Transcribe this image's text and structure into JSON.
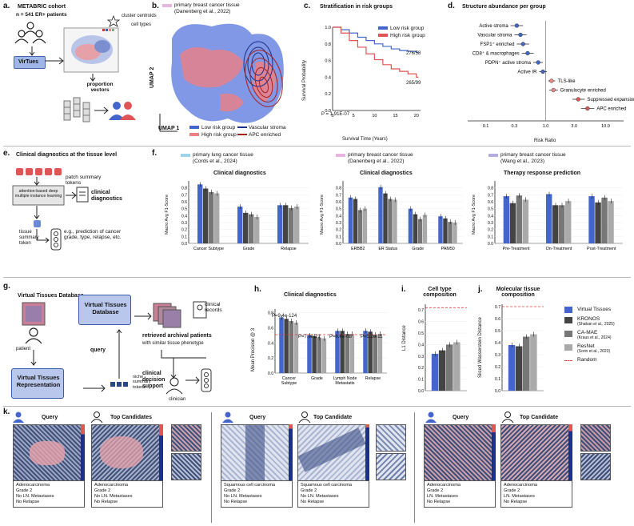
{
  "panel_a": {
    "label": "a.",
    "title": "METABRIC cohort",
    "subtitle": "n = 541 ER+ patients",
    "legend_centroids": "cluster centroids",
    "legend_celltypes": "cell types",
    "model": "VirTues",
    "output": "proportion vectors"
  },
  "panel_b": {
    "label": "b.",
    "tissue_tag": "primary breast cancer tissue",
    "citation": "(Danenberg et al., 2022)",
    "xlabel": "UMAP 1",
    "ylabel": "UMAP 2",
    "legend": [
      "Low risk group",
      "High risk group",
      "Vascular stroma",
      "APC enriched"
    ]
  },
  "panel_c": {
    "label": "c.",
    "title": "Stratification in risk groups",
    "legend": [
      "Low risk group",
      "High risk group"
    ],
    "pvalue": "P = 1.91E-07",
    "end_low": "276/58",
    "end_high": "265/99",
    "xlabel": "Survival Time (Years)",
    "ylabel": "Survival Probability"
  },
  "panel_d": {
    "label": "d.",
    "title": "Structure abundance per group",
    "xlabel": "Risk Ratio"
  },
  "panel_e": {
    "label": "e.",
    "title": "Clinical diagnostics at the tissue level",
    "tokens": "patch summary tokens",
    "mil": "attention-based deep multiple instance learning",
    "clin": "clinical diagnostics",
    "eg": "e.g., prediction of cancer grade, type, relapse, etc.",
    "tissue_token": "tissue summary token"
  },
  "panel_f": {
    "label": "f.",
    "groups": [
      {
        "tag": "primary lung cancer tissue",
        "cite": "(Cords et al., 2024)",
        "title": "Clinical diagnostics"
      },
      {
        "tag": "primary breast cancer tissue",
        "cite": "(Danenberg et al., 2022)",
        "title": "Clinical diagnostics"
      },
      {
        "tag": "primary breast cancer tissue",
        "cite": "(Wang et al., 2023)",
        "title": "Therapy response prediction"
      }
    ],
    "ylabel": "Macro Avg F1-Score"
  },
  "panel_g": {
    "label": "g.",
    "title": "Virtual Tissues Database",
    "patient": "patient",
    "db": "Virtual Tissues Database",
    "rep": "Virtual Tissues Representation",
    "query": "query",
    "niche": "niche summary tokens",
    "records": "clinical records",
    "retrieved": "retrieved archival patients",
    "similar": "with similar tissue phenotype",
    "decision": "clinical decision support",
    "clinician": "clinician"
  },
  "panel_h": {
    "label": "h.",
    "title": "Clinical diagnostics",
    "ylabel": "Mean Precision @ 3",
    "pvals": [
      "P=9.4e-124",
      "P=7.0e-22",
      "P=8.6e-08",
      "P=5.2e-11"
    ]
  },
  "panel_i": {
    "label": "i.",
    "title": "Cell type composition",
    "ylabel": "L1 Distance"
  },
  "panel_j": {
    "label": "j.",
    "title": "Molecular tissue composition",
    "ylabel": "Sliced Wasserstein Distance"
  },
  "legend_main": [
    {
      "name": "Virtual Tissues",
      "sub": "",
      "color": "#4466cc"
    },
    {
      "name": "KRONOS",
      "sub": "(Shaban et al., 2025)",
      "color": "#444444"
    },
    {
      "name": "CA-MAE",
      "sub": "(Kraus et al., 2024)",
      "color": "#777777"
    },
    {
      "name": "ResNet",
      "sub": "(Sorin et al., 2023)",
      "color": "#aaaaaa"
    },
    {
      "name": "Random",
      "sub": "",
      "color": "#e04040"
    }
  ],
  "panel_k": {
    "label": "k.",
    "cases": [
      {
        "query": "Query",
        "cand": "Top Candidates",
        "q_text": [
          "Adenocarcinoma",
          "Grade 2",
          "No LN. Metastases",
          "No Relapse"
        ],
        "c_text": [
          "Adenocarcinoma",
          "Grade 2",
          "No LN. Metastases",
          "No Relapse"
        ]
      },
      {
        "query": "Query",
        "cand": "Top Candidate",
        "q_text": [
          "Squamous cell carcinoma",
          "Grade 2",
          "No LN. Metastases",
          "No Relapse"
        ],
        "c_text": [
          "Squamous cell carcinoma",
          "Grade 2",
          "No LN. Metastases",
          "No Relapse"
        ]
      },
      {
        "query": "Query",
        "cand": "Top Candidate",
        "q_text": [
          "Adenocarcinoma",
          "Grade 2",
          "LN. Metastases",
          "No Relapse"
        ],
        "c_text": [
          "Adenocarcinoma",
          "Grade 2",
          "LN. Metastases",
          "No Relapse"
        ]
      }
    ]
  },
  "chart_data": [
    {
      "id": "survival",
      "type": "line",
      "title": "Stratification in risk groups",
      "xlabel": "Survival Time (Years)",
      "ylabel": "Survival Probability",
      "xlim": [
        0,
        21
      ],
      "ylim": [
        0.0,
        1.0
      ],
      "xticks": [
        0,
        5,
        10,
        15,
        20
      ],
      "yticks": [
        0.0,
        0.2,
        0.4,
        0.6,
        0.8,
        1.0
      ],
      "series": [
        {
          "name": "Low risk group",
          "color": "#4466cc",
          "x": [
            0,
            2,
            4,
            6,
            8,
            10,
            12,
            14,
            16,
            18,
            20,
            20.5
          ],
          "y": [
            1.0,
            0.97,
            0.93,
            0.88,
            0.84,
            0.8,
            0.77,
            0.74,
            0.72,
            0.71,
            0.7,
            0.7
          ]
        },
        {
          "name": "High risk group",
          "color": "#e05555",
          "x": [
            0,
            2,
            4,
            6,
            8,
            10,
            12,
            14,
            16,
            18,
            20,
            20.5
          ],
          "y": [
            1.0,
            0.93,
            0.84,
            0.76,
            0.68,
            0.61,
            0.55,
            0.5,
            0.47,
            0.44,
            0.4,
            0.4
          ]
        }
      ]
    },
    {
      "id": "forest",
      "type": "scatter",
      "title": "Structure abundance per group",
      "xlabel": "Risk Ratio",
      "xscale": "log",
      "xlim": [
        0.05,
        20
      ],
      "xticks": [
        0.1,
        0.3,
        1.0,
        3.0,
        10.0
      ],
      "categories": [
        "Active stroma",
        "Vascular stroma",
        "FSP1⁺ enriched",
        "CD8⁺ & macrophages",
        "PDPN⁺ active stroma",
        "Active IR",
        "TLS-like",
        "Granulocyte enriched",
        "Suppressed expansion",
        "APC enriched"
      ],
      "values": [
        0.33,
        0.38,
        0.42,
        0.5,
        0.75,
        0.9,
        1.25,
        1.35,
        3.5,
        5.0
      ],
      "ci_low": [
        0.26,
        0.3,
        0.33,
        0.4,
        0.62,
        0.78,
        1.1,
        1.15,
        2.8,
        3.9
      ],
      "ci_high": [
        0.42,
        0.48,
        0.53,
        0.63,
        0.9,
        1.05,
        1.45,
        1.6,
        4.5,
        6.5
      ]
    },
    {
      "id": "f1",
      "type": "bar",
      "ylabel": "Macro Avg F1-Score",
      "ylim": [
        0.0,
        0.9
      ],
      "yticks": [
        0.0,
        0.1,
        0.2,
        0.3,
        0.4,
        0.5,
        0.6,
        0.7,
        0.8
      ],
      "categories": [
        "Cancer Subtype",
        "Grade",
        "Relapse"
      ],
      "series": [
        {
          "name": "Virtual Tissues",
          "values": [
            0.85,
            0.53,
            0.55
          ]
        },
        {
          "name": "KRONOS",
          "values": [
            0.79,
            0.44,
            0.55
          ]
        },
        {
          "name": "CA-MAE",
          "values": [
            0.74,
            0.42,
            0.51
          ]
        },
        {
          "name": "ResNet",
          "values": [
            0.72,
            0.38,
            0.53
          ]
        }
      ]
    },
    {
      "id": "f2",
      "type": "bar",
      "ylabel": "Macro Avg F1-Score",
      "ylim": [
        0.0,
        0.9
      ],
      "yticks": [
        0.0,
        0.1,
        0.2,
        0.3,
        0.4,
        0.5,
        0.6,
        0.7,
        0.8
      ],
      "categories": [
        "ERBB2",
        "ER Status",
        "Grade",
        "PAM50"
      ],
      "series": [
        {
          "name": "Virtual Tissues",
          "values": [
            0.66,
            0.81,
            0.5,
            0.39
          ]
        },
        {
          "name": "KRONOS",
          "values": [
            0.64,
            0.72,
            0.42,
            0.36
          ]
        },
        {
          "name": "CA-MAE",
          "values": [
            0.48,
            0.64,
            0.35,
            0.31
          ]
        },
        {
          "name": "ResNet",
          "values": [
            0.5,
            0.63,
            0.41,
            0.3
          ]
        }
      ]
    },
    {
      "id": "f3",
      "type": "bar",
      "ylabel": "Macro Avg F1-Score",
      "ylim": [
        0.0,
        0.9
      ],
      "yticks": [
        0.0,
        0.1,
        0.2,
        0.3,
        0.4,
        0.5,
        0.6,
        0.7,
        0.8
      ],
      "categories": [
        "Pre-Treatment",
        "On-Treatment",
        "Post-Treatment"
      ],
      "series": [
        {
          "name": "Virtual Tissues",
          "values": [
            0.68,
            0.71,
            0.68
          ]
        },
        {
          "name": "KRONOS",
          "values": [
            0.58,
            0.55,
            0.59
          ]
        },
        {
          "name": "CA-MAE",
          "values": [
            0.69,
            0.55,
            0.66
          ]
        },
        {
          "name": "ResNet",
          "values": [
            0.63,
            0.61,
            0.61
          ]
        }
      ]
    },
    {
      "id": "h",
      "type": "bar",
      "title": "Clinical diagnostics",
      "ylabel": "Mean Precision @ 3",
      "ylim": [
        0.0,
        0.85
      ],
      "yticks": [
        0.0,
        0.2,
        0.4,
        0.6,
        0.8
      ],
      "random": 0.51,
      "categories": [
        "Cancer Subtype",
        "Grade",
        "Lymph Node Metastatis",
        "Relapse"
      ],
      "series": [
        {
          "name": "Virtual Tissues",
          "values": [
            0.74,
            0.5,
            0.56,
            0.56
          ]
        },
        {
          "name": "KRONOS",
          "values": [
            0.72,
            0.49,
            0.56,
            0.55
          ]
        },
        {
          "name": "CA-MAE",
          "values": [
            0.69,
            0.47,
            0.52,
            0.51
          ]
        },
        {
          "name": "ResNet",
          "values": [
            0.67,
            0.46,
            0.52,
            0.52
          ]
        }
      ]
    },
    {
      "id": "i",
      "type": "bar",
      "title": "Cell type composition",
      "ylabel": "L1 Distance",
      "ylim": [
        0.0,
        0.75
      ],
      "yticks": [
        0.0,
        0.1,
        0.2,
        0.3,
        0.4,
        0.5,
        0.6,
        0.7
      ],
      "random": 0.72,
      "categories": [
        ""
      ],
      "series": [
        {
          "name": "Virtual Tissues",
          "values": [
            0.32
          ]
        },
        {
          "name": "KRONOS",
          "values": [
            0.35
          ]
        },
        {
          "name": "CA-MAE",
          "values": [
            0.4
          ]
        },
        {
          "name": "ResNet",
          "values": [
            0.42
          ]
        }
      ]
    },
    {
      "id": "j",
      "type": "bar",
      "title": "Molecular tissue composition",
      "ylabel": "Sliced Wasserstein Distance",
      "ylim": [
        0.0,
        0.72
      ],
      "yticks": [
        0.0,
        0.1,
        0.2,
        0.3,
        0.4,
        0.5,
        0.6,
        0.7
      ],
      "random": 0.7,
      "categories": [
        ""
      ],
      "series": [
        {
          "name": "Virtual Tissues",
          "values": [
            0.38
          ]
        },
        {
          "name": "KRONOS",
          "values": [
            0.37
          ]
        },
        {
          "name": "CA-MAE",
          "values": [
            0.45
          ]
        },
        {
          "name": "ResNet",
          "values": [
            0.47
          ]
        }
      ]
    }
  ]
}
